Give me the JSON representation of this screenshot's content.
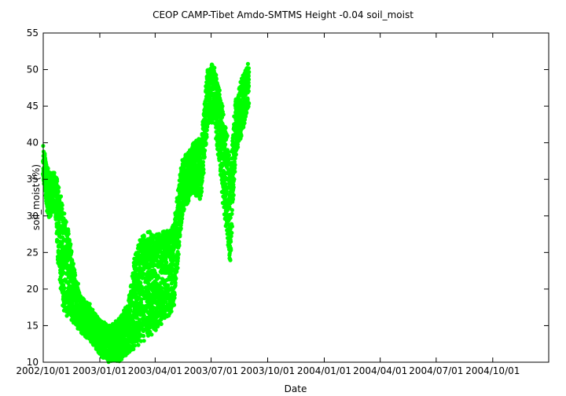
{
  "chart_data": {
    "type": "scatter",
    "title": "CEOP CAMP-Tibet Amdo-SMTMS Height -0.04 soil_moist",
    "xlabel": "Date",
    "ylabel": "soil_moist (%)",
    "x_ticks": [
      "2002/10/01",
      "2003/01/01",
      "2003/04/01",
      "2003/07/01",
      "2003/10/01",
      "2004/01/01",
      "2004/04/01",
      "2004/07/01",
      "2004/10/01"
    ],
    "xlim": [
      "2002/10/01",
      "2004/12/31"
    ],
    "ylim": [
      10,
      55
    ],
    "y_ticks": [
      10,
      15,
      20,
      25,
      30,
      35,
      40,
      45,
      50,
      55
    ],
    "grid": false,
    "legend": "none",
    "marker_color": "#00ff00",
    "series_envelope": [
      {
        "date": "2002/10/01",
        "min": 35,
        "max": 40
      },
      {
        "date": "2002/10/10",
        "min": 29,
        "max": 36
      },
      {
        "date": "2002/10/20",
        "min": 31,
        "max": 36
      },
      {
        "date": "2002/10/25",
        "min": 24,
        "max": 35
      },
      {
        "date": "2002/11/01",
        "min": 17,
        "max": 32
      },
      {
        "date": "2002/11/10",
        "min": 16,
        "max": 29
      },
      {
        "date": "2002/11/20",
        "min": 15,
        "max": 23
      },
      {
        "date": "2002/12/01",
        "min": 14,
        "max": 19
      },
      {
        "date": "2002/12/15",
        "min": 13,
        "max": 18
      },
      {
        "date": "2003/01/01",
        "min": 11,
        "max": 16
      },
      {
        "date": "2003/01/15",
        "min": 10,
        "max": 15
      },
      {
        "date": "2003/02/01",
        "min": 10,
        "max": 16
      },
      {
        "date": "2003/02/15",
        "min": 11,
        "max": 18
      },
      {
        "date": "2003/03/01",
        "min": 12,
        "max": 26
      },
      {
        "date": "2003/03/15",
        "min": 13,
        "max": 28
      },
      {
        "date": "2003/04/01",
        "min": 14,
        "max": 28
      },
      {
        "date": "2003/04/15",
        "min": 15,
        "max": 28
      },
      {
        "date": "2003/05/01",
        "min": 17,
        "max": 29
      },
      {
        "date": "2003/05/15",
        "min": 30,
        "max": 38
      },
      {
        "date": "2003/06/01",
        "min": 33,
        "max": 40
      },
      {
        "date": "2003/06/15",
        "min": 32,
        "max": 41
      },
      {
        "date": "2003/06/25",
        "min": 42,
        "max": 50
      },
      {
        "date": "2003/07/05",
        "min": 43,
        "max": 51
      },
      {
        "date": "2003/07/15",
        "min": 36,
        "max": 47
      },
      {
        "date": "2003/07/25",
        "min": 28,
        "max": 43
      },
      {
        "date": "2003/08/01",
        "min": 23,
        "max": 37
      },
      {
        "date": "2003/08/10",
        "min": 38,
        "max": 46
      },
      {
        "date": "2003/08/20",
        "min": 41,
        "max": 49
      },
      {
        "date": "2003/08/31",
        "min": 45,
        "max": 51
      }
    ]
  }
}
